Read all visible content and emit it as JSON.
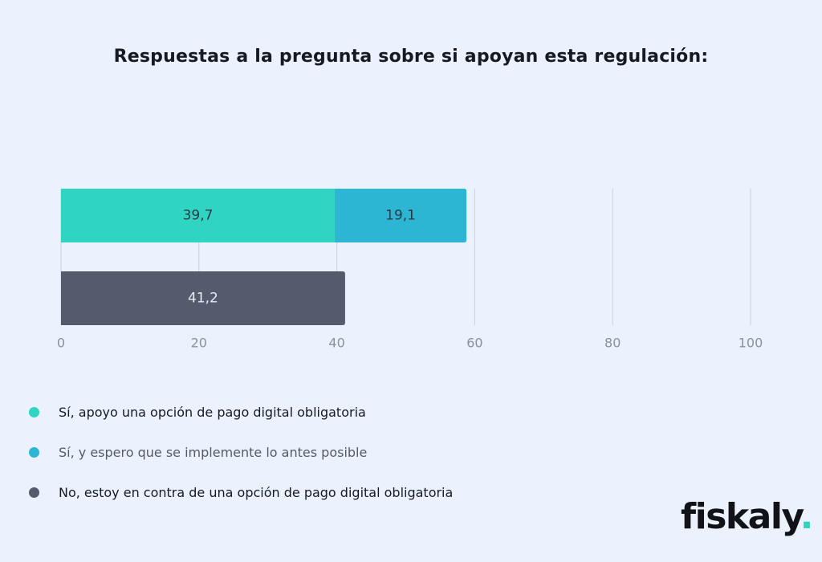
{
  "chart_data": {
    "type": "bar",
    "orientation": "horizontal",
    "stacked": true,
    "title": "Respuestas a la pregunta sobre si apoyan esta regulación:",
    "xlim": [
      0,
      100
    ],
    "xticks": [
      "0",
      "20",
      "40",
      "60",
      "80",
      "100"
    ],
    "bars": [
      {
        "segments": [
          {
            "value": 39.7,
            "label": "39,7",
            "series": "Sí, apoyo una opción de pago digital obligatoria",
            "color": "#2fd5c2"
          },
          {
            "value": 19.1,
            "label": "19,1",
            "series": "Sí, y espero que se implemente lo antes posible",
            "color": "#2db5d4"
          }
        ]
      },
      {
        "segments": [
          {
            "value": 41.2,
            "label": "41,2",
            "series": "No, estoy en contra de una opción de pago digital obligatoria",
            "color": "#545b6d"
          }
        ]
      }
    ],
    "legend": [
      {
        "label": "Sí, apoyo una opción de pago digital obligatoria",
        "color": "#2fd5c2"
      },
      {
        "label": "Sí, y espero que se implemente lo antes posible",
        "color": "#2db5d4"
      },
      {
        "label": "No, estoy en contra de una opción de pago digital obligatoria",
        "color": "#545b6d"
      }
    ]
  },
  "brand": {
    "name": "fiskaly",
    "dot": "."
  }
}
